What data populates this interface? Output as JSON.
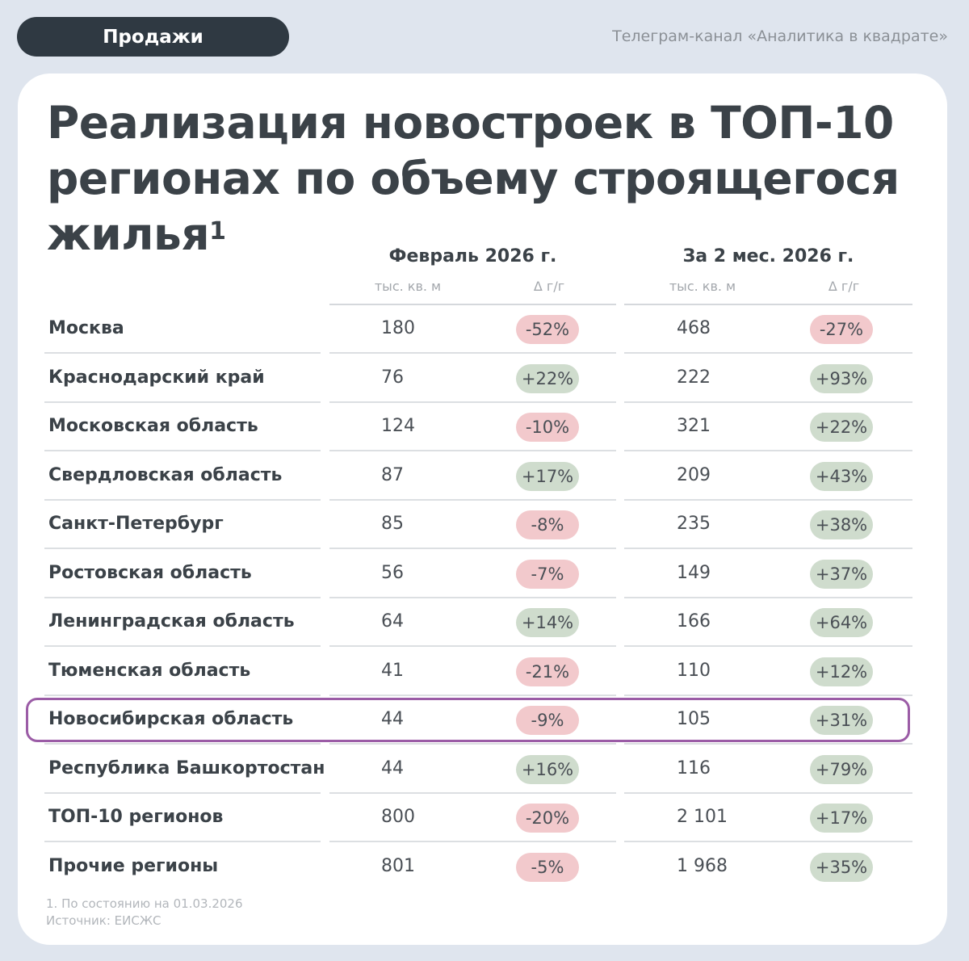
{
  "header": {
    "tag": "Продажи",
    "channel": "Телеграм-канал «Аналитика в квадрате»"
  },
  "title": {
    "line1": "Реализация новостроек в ТОП-10",
    "line2": "регионах по объему строящегося",
    "line3": "жилья",
    "footnote_mark": "1"
  },
  "columns": {
    "feb": {
      "period": "Февраль 2026 г.",
      "unit": "тыс. кв. м",
      "delta": "Δ г/г"
    },
    "ytd": {
      "period": "За 2 мес. 2026 г.",
      "unit": "тыс. кв. м",
      "delta": "Δ г/г"
    }
  },
  "rows": [
    {
      "name": "Москва",
      "feb": "180",
      "feb_d": "-52%",
      "ytd": "468",
      "ytd_d": "-27%"
    },
    {
      "name": "Краснодарский край",
      "feb": "76",
      "feb_d": "+22%",
      "ytd": "222",
      "ytd_d": "+93%"
    },
    {
      "name": "Московская область",
      "feb": "124",
      "feb_d": "-10%",
      "ytd": "321",
      "ytd_d": "+22%"
    },
    {
      "name": "Свердловская область",
      "feb": "87",
      "feb_d": "+17%",
      "ytd": "209",
      "ytd_d": "+43%"
    },
    {
      "name": "Санкт-Петербург",
      "feb": "85",
      "feb_d": "-8%",
      "ytd": "235",
      "ytd_d": "+38%"
    },
    {
      "name": "Ростовская область",
      "feb": "56",
      "feb_d": "-7%",
      "ytd": "149",
      "ytd_d": "+37%"
    },
    {
      "name": "Ленинградская область",
      "feb": "64",
      "feb_d": "+14%",
      "ytd": "166",
      "ytd_d": "+64%"
    },
    {
      "name": "Тюменская область",
      "feb": "41",
      "feb_d": "-21%",
      "ytd": "110",
      "ytd_d": "+12%"
    },
    {
      "name": "Новосибирская область",
      "feb": "44",
      "feb_d": "-9%",
      "ytd": "105",
      "ytd_d": "+31%",
      "highlighted": true
    },
    {
      "name": "Республика Башкортостан",
      "feb": "44",
      "feb_d": "+16%",
      "ytd": "116",
      "ytd_d": "+79%"
    },
    {
      "name": "ТОП-10 регионов",
      "feb": "800",
      "feb_d": "-20%",
      "ytd": "2 101",
      "ytd_d": "+17%"
    },
    {
      "name": "Прочие регионы",
      "feb": "801",
      "feb_d": "-5%",
      "ytd": "1 968",
      "ytd_d": "+35%"
    }
  ],
  "colors": {
    "negative_badge": "#f2c9cc",
    "positive_badge": "#cfdccd",
    "highlight_border": "#9b5ca6",
    "header_pill": "#2f3942"
  },
  "footer": {
    "note": "1. По состоянию на 01.03.2026",
    "source": "Источник: ЕИСЖС"
  }
}
